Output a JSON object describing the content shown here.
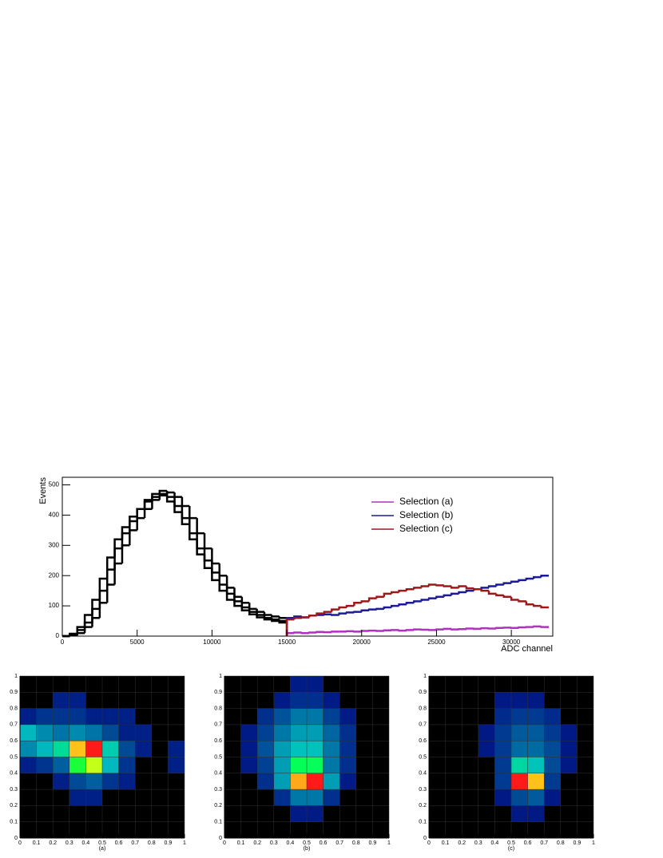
{
  "chart_data": [
    {
      "type": "histogram",
      "xlabel": "ADC channel",
      "ylabel": "Events",
      "xlim": [
        0,
        32768
      ],
      "ylim": [
        0,
        525
      ],
      "xticks": [
        0,
        5000,
        10000,
        15000,
        20000,
        25000,
        30000
      ],
      "yticks": [
        0,
        100,
        200,
        300,
        400,
        500
      ],
      "legend": "top-right",
      "bins": [
        0,
        500,
        1000,
        1500,
        2000,
        2500,
        3000,
        3500,
        4000,
        4500,
        5000,
        5500,
        6000,
        6500,
        7000,
        7500,
        8000,
        8500,
        9000,
        9500,
        10000,
        10500,
        11000,
        11500,
        12000,
        12500,
        13000,
        13500,
        14000,
        14500,
        15000,
        15500,
        16000,
        16500,
        17000,
        17500,
        18000,
        18500,
        19000,
        19500,
        20000,
        20500,
        21000,
        21500,
        22000,
        22500,
        23000,
        23500,
        24000,
        24500,
        25000,
        25500,
        26000,
        26500,
        27000,
        27500,
        28000,
        28500,
        29000,
        29500,
        30000,
        30500,
        31000,
        31500,
        32000,
        32500
      ],
      "series": [
        {
          "color": "#000000",
          "values": [
            0,
            5,
            20,
            45,
            90,
            150,
            220,
            290,
            340,
            380,
            420,
            450,
            470,
            480,
            460,
            430,
            390,
            340,
            290,
            250,
            210,
            170,
            140,
            115,
            95,
            80,
            70,
            60,
            55,
            50,
            null,
            null,
            null,
            null,
            null,
            null,
            null,
            null,
            null,
            null,
            null,
            null,
            null,
            null,
            null,
            null,
            null,
            null,
            null,
            null,
            null,
            null,
            null,
            null,
            null,
            null,
            null,
            null,
            null,
            null,
            null,
            null,
            null,
            null,
            null
          ]
        },
        {
          "color": "#000000",
          "values": [
            0,
            2,
            10,
            30,
            60,
            110,
            170,
            240,
            300,
            350,
            390,
            420,
            450,
            470,
            475,
            460,
            430,
            390,
            340,
            290,
            240,
            200,
            160,
            130,
            110,
            90,
            80,
            70,
            65,
            60,
            null,
            null,
            null,
            null,
            null,
            null,
            null,
            null,
            null,
            null,
            null,
            null,
            null,
            null,
            null,
            null,
            null,
            null,
            null,
            null,
            null,
            null,
            null,
            null,
            null,
            null,
            null,
            null,
            null,
            null,
            null,
            null,
            null,
            null,
            null
          ]
        },
        {
          "color": "#000000",
          "values": [
            0,
            8,
            30,
            70,
            120,
            190,
            260,
            320,
            360,
            395,
            420,
            445,
            460,
            465,
            445,
            410,
            370,
            320,
            270,
            225,
            185,
            150,
            120,
            100,
            85,
            72,
            62,
            55,
            50,
            45,
            null,
            null,
            null,
            null,
            null,
            null,
            null,
            null,
            null,
            null,
            null,
            null,
            null,
            null,
            null,
            null,
            null,
            null,
            null,
            null,
            null,
            null,
            null,
            null,
            null,
            null,
            null,
            null,
            null,
            null,
            null,
            null,
            null,
            null,
            null
          ]
        },
        {
          "name": "Selection (a)",
          "color": "#b030c0",
          "values": [
            null,
            null,
            null,
            null,
            null,
            null,
            null,
            null,
            null,
            null,
            null,
            null,
            null,
            null,
            null,
            null,
            null,
            null,
            null,
            null,
            null,
            null,
            null,
            null,
            null,
            null,
            null,
            null,
            null,
            null,
            10,
            12,
            10,
            12,
            14,
            13,
            15,
            15,
            16,
            15,
            17,
            18,
            17,
            19,
            20,
            18,
            20,
            22,
            21,
            20,
            22,
            24,
            22,
            23,
            25,
            24,
            26,
            25,
            27,
            28,
            27,
            29,
            30,
            32,
            30
          ]
        },
        {
          "name": "Selection (b)",
          "color": "#1a1a9a",
          "values": [
            null,
            null,
            null,
            null,
            null,
            null,
            null,
            null,
            null,
            null,
            null,
            null,
            null,
            null,
            null,
            null,
            null,
            null,
            null,
            null,
            null,
            null,
            null,
            null,
            null,
            null,
            null,
            null,
            null,
            null,
            60,
            65,
            62,
            68,
            70,
            72,
            70,
            75,
            78,
            80,
            85,
            88,
            90,
            95,
            100,
            105,
            110,
            115,
            120,
            125,
            130,
            135,
            140,
            145,
            150,
            155,
            160,
            165,
            170,
            175,
            180,
            185,
            190,
            195,
            200
          ]
        },
        {
          "name": "Selection (c)",
          "color": "#9a1a1a",
          "values": [
            null,
            null,
            null,
            null,
            null,
            null,
            null,
            null,
            null,
            null,
            null,
            null,
            null,
            null,
            null,
            null,
            null,
            null,
            null,
            null,
            null,
            null,
            null,
            null,
            null,
            null,
            null,
            null,
            null,
            null,
            55,
            60,
            62,
            68,
            75,
            80,
            88,
            95,
            100,
            110,
            115,
            125,
            130,
            140,
            145,
            150,
            155,
            160,
            165,
            170,
            168,
            165,
            160,
            165,
            158,
            155,
            150,
            140,
            135,
            130,
            120,
            115,
            105,
            100,
            95
          ]
        }
      ]
    },
    {
      "type": "heatmap",
      "xlabel": "(a)",
      "xlim": [
        0,
        1
      ],
      "ylim": [
        0,
        1
      ],
      "xticks": [
        0,
        0.1,
        0.2,
        0.3,
        0.4,
        0.5,
        0.6,
        0.7,
        0.8,
        0.9,
        1
      ],
      "yticks": [
        0,
        0.1,
        0.2,
        0.3,
        0.4,
        0.5,
        0.6,
        0.7,
        0.8,
        0.9,
        1
      ],
      "xbins": [
        0,
        0.1,
        0.2,
        0.3,
        0.4,
        0.5,
        0.6,
        0.7,
        0.8,
        0.9,
        1
      ],
      "ybins": [
        0,
        0.1,
        0.2,
        0.3,
        0.4,
        0.5,
        0.6,
        0.7,
        0.8,
        0.9,
        1
      ],
      "z": [
        [
          0,
          0,
          0,
          0,
          0,
          0,
          0,
          0,
          0,
          0
        ],
        [
          0,
          0,
          0,
          0,
          0,
          0,
          0,
          0,
          0,
          0
        ],
        [
          0,
          0,
          0,
          1,
          1,
          0,
          0,
          0,
          0,
          0
        ],
        [
          0,
          0,
          1,
          3,
          4,
          2,
          1,
          0,
          0,
          0
        ],
        [
          1,
          2,
          4,
          20,
          35,
          8,
          2,
          0,
          0,
          1
        ],
        [
          6,
          8,
          12,
          45,
          60,
          10,
          3,
          1,
          0,
          1
        ],
        [
          8,
          6,
          5,
          6,
          5,
          3,
          1,
          1,
          0,
          0
        ],
        [
          1,
          2,
          2,
          2,
          1,
          1,
          1,
          0,
          0,
          0
        ],
        [
          0,
          0,
          1,
          1,
          0,
          0,
          0,
          0,
          0,
          0
        ],
        [
          0,
          0,
          0,
          0,
          0,
          0,
          0,
          0,
          0,
          0
        ]
      ]
    },
    {
      "type": "heatmap",
      "xlabel": "(b)",
      "xlim": [
        0,
        1
      ],
      "ylim": [
        0,
        1
      ],
      "xticks": [
        0,
        0.1,
        0.2,
        0.3,
        0.4,
        0.5,
        0.6,
        0.7,
        0.8,
        0.9,
        1
      ],
      "yticks": [
        0,
        0.1,
        0.2,
        0.3,
        0.4,
        0.5,
        0.6,
        0.7,
        0.8,
        0.9,
        1
      ],
      "xbins": [
        0,
        0.1,
        0.2,
        0.3,
        0.4,
        0.5,
        0.6,
        0.7,
        0.8,
        0.9,
        1
      ],
      "ybins": [
        0,
        0.1,
        0.2,
        0.3,
        0.4,
        0.5,
        0.6,
        0.7,
        0.8,
        0.9,
        1
      ],
      "z": [
        [
          0,
          0,
          0,
          0,
          0,
          0,
          0,
          0,
          0,
          0
        ],
        [
          0,
          0,
          0,
          0,
          1,
          1,
          0,
          0,
          0,
          0
        ],
        [
          0,
          0,
          0,
          2,
          6,
          6,
          2,
          0,
          0,
          0
        ],
        [
          0,
          0,
          2,
          8,
          55,
          70,
          8,
          1,
          0,
          0
        ],
        [
          0,
          1,
          3,
          8,
          20,
          20,
          6,
          2,
          0,
          0
        ],
        [
          0,
          1,
          4,
          8,
          10,
          10,
          6,
          2,
          0,
          0
        ],
        [
          0,
          1,
          3,
          6,
          8,
          8,
          5,
          2,
          0,
          0
        ],
        [
          0,
          0,
          2,
          4,
          6,
          6,
          3,
          1,
          0,
          0
        ],
        [
          0,
          0,
          0,
          1,
          2,
          2,
          1,
          0,
          0,
          0
        ],
        [
          0,
          0,
          0,
          0,
          1,
          1,
          0,
          0,
          0,
          0
        ]
      ]
    },
    {
      "type": "heatmap",
      "xlabel": "(c)",
      "xlim": [
        0,
        1
      ],
      "ylim": [
        0,
        1
      ],
      "xticks": [
        0,
        0.1,
        0.2,
        0.3,
        0.4,
        0.5,
        0.6,
        0.7,
        0.8,
        0.9,
        1
      ],
      "yticks": [
        0,
        0.1,
        0.2,
        0.3,
        0.4,
        0.5,
        0.6,
        0.7,
        0.8,
        0.9,
        1
      ],
      "xbins": [
        0,
        0.1,
        0.2,
        0.3,
        0.4,
        0.5,
        0.6,
        0.7,
        0.8,
        0.9,
        1
      ],
      "ybins": [
        0,
        0.1,
        0.2,
        0.3,
        0.4,
        0.5,
        0.6,
        0.7,
        0.8,
        0.9,
        1
      ],
      "z": [
        [
          0,
          0,
          0,
          0,
          0,
          0,
          0,
          0,
          0,
          0
        ],
        [
          0,
          0,
          0,
          0,
          0,
          1,
          1,
          0,
          0,
          0
        ],
        [
          0,
          0,
          0,
          0,
          1,
          4,
          5,
          1,
          0,
          0
        ],
        [
          0,
          0,
          0,
          0,
          3,
          80,
          60,
          3,
          0,
          0
        ],
        [
          0,
          0,
          0,
          0,
          3,
          15,
          12,
          4,
          1,
          0
        ],
        [
          0,
          0,
          0,
          1,
          3,
          6,
          6,
          4,
          1,
          0
        ],
        [
          0,
          0,
          0,
          1,
          3,
          5,
          5,
          3,
          1,
          0
        ],
        [
          0,
          0,
          0,
          0,
          2,
          3,
          3,
          2,
          0,
          0
        ],
        [
          0,
          0,
          0,
          0,
          1,
          1,
          1,
          0,
          0,
          0
        ],
        [
          0,
          0,
          0,
          0,
          0,
          0,
          0,
          0,
          0,
          0
        ]
      ]
    }
  ]
}
